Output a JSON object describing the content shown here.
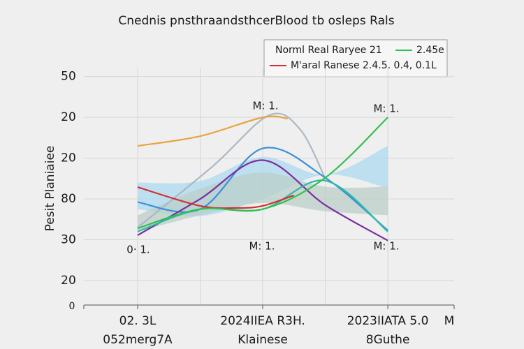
{
  "chart_data": {
    "type": "line",
    "title": "Cnednis pnsthraandsthcerBlood tb osleps Rals",
    "y_label": "Pesit Planiaiee",
    "ycategories": [
      "20",
      "30",
      "80",
      "20",
      "20",
      "50"
    ],
    "origin_label": "0",
    "ylim": [
      -0.6,
      5.2
    ],
    "xlim": [
      -0.43,
      2.53
    ],
    "categories": [
      [
        "02. 3L",
        "052merg7A"
      ],
      [
        "2024IIEA R3H.",
        "Klainese"
      ],
      [
        "2023IIATA 5.0",
        "8Guthe"
      ]
    ],
    "x_end_label": "M",
    "grid": true,
    "legend_note": "2.45e",
    "annotations": [
      "M: 1.",
      "M: 1.",
      "0· 1.",
      "M: 1.",
      "M: 1."
    ],
    "bands": [
      {
        "color": "#a9d9ef",
        "x": [
          0,
          0.5,
          1,
          1.5,
          2
        ],
        "lower": [
          1.75,
          1.58,
          2.0,
          2.6,
          2.26
        ],
        "upper": [
          2.4,
          2.44,
          3.03,
          2.6,
          3.3
        ]
      },
      {
        "color": "#b9cdc6",
        "x": [
          0,
          0.5,
          1,
          1.5,
          2
        ],
        "lower": [
          1.2,
          1.6,
          1.9,
          1.7,
          1.6
        ],
        "upper": [
          1.6,
          2.25,
          2.65,
          2.3,
          2.3
        ]
      }
    ],
    "series": [
      {
        "color": "#aab8c6",
        "x": [
          0,
          0.6,
          1.05,
          1.3,
          1.5
        ],
        "values": [
          1.3,
          2.8,
          4.05,
          3.7,
          2.5
        ]
      },
      {
        "color": "#e8a33e",
        "x": [
          0,
          0.5,
          1,
          1.2
        ],
        "values": [
          3.3,
          3.54,
          4.0,
          3.97
        ]
      },
      {
        "color": "#3a90d8",
        "x": [
          0,
          0.5,
          1,
          1.5,
          2
        ],
        "values": [
          1.92,
          1.75,
          3.24,
          2.52,
          1.23
        ]
      },
      {
        "color": "#7b2fa0",
        "x": [
          0,
          0.5,
          1,
          1.5,
          2
        ],
        "values": [
          1.11,
          2.0,
          2.95,
          1.85,
          0.98
        ]
      },
      {
        "color": "#30b8a8",
        "x": [
          0,
          0.5,
          1,
          1.5,
          2
        ],
        "values": [
          1.2,
          1.75,
          1.75,
          2.45,
          1.2
        ]
      },
      {
        "name": "M'aral Ranese  2.4.5.  0.4,  0.1L",
        "color": "#d03030",
        "x": [
          0,
          0.5,
          0.8,
          1,
          1.25
        ],
        "values": [
          2.29,
          1.83,
          1.78,
          1.83,
          2.09
        ]
      },
      {
        "name": "Norml Real Raryee  21",
        "color": "#30c050",
        "x": [
          0,
          0.5,
          1,
          1.5,
          2
        ],
        "values": [
          1.28,
          1.75,
          1.75,
          2.52,
          4.0
        ]
      }
    ]
  }
}
